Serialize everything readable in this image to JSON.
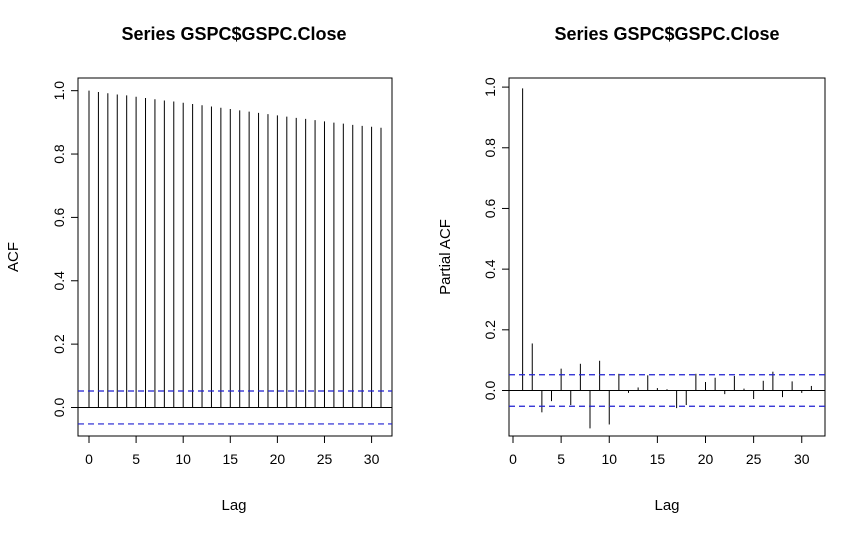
{
  "chart_data": [
    {
      "type": "bar",
      "title": "Series  GSPC$GSPC.Close",
      "xlabel": "Lag",
      "ylabel": "ACF",
      "xlim": [
        0,
        31
      ],
      "ylim": [
        -0.09,
        1.04
      ],
      "xticks": [
        "0",
        "5",
        "10",
        "15",
        "20",
        "25",
        "30"
      ],
      "yticks": [
        "0.0",
        "0.2",
        "0.4",
        "0.6",
        "0.8",
        "1.0"
      ],
      "ci": 0.052,
      "ci_color": "#1f1fd1",
      "lag_start": 0,
      "values": [
        1.0,
        0.996,
        0.992,
        0.988,
        0.985,
        0.981,
        0.977,
        0.973,
        0.969,
        0.966,
        0.962,
        0.958,
        0.954,
        0.95,
        0.946,
        0.942,
        0.938,
        0.934,
        0.93,
        0.926,
        0.922,
        0.918,
        0.914,
        0.911,
        0.907,
        0.903,
        0.899,
        0.896,
        0.892,
        0.889,
        0.886,
        0.883
      ]
    },
    {
      "type": "bar",
      "title": "Series  GSPC$GSPC.Close",
      "xlabel": "Lag",
      "ylabel": "Partial ACF",
      "xlim": [
        0,
        32
      ],
      "ylim": [
        -0.15,
        1.03
      ],
      "xticks": [
        "0",
        "5",
        "10",
        "15",
        "20",
        "25",
        "30"
      ],
      "yticks": [
        "0.0",
        "0.2",
        "0.4",
        "0.6",
        "0.8",
        "1.0"
      ],
      "ci": 0.052,
      "ci_color": "#1f1fd1",
      "lag_start": 1,
      "values": [
        0.996,
        0.155,
        -0.072,
        -0.035,
        0.072,
        -0.048,
        0.088,
        -0.125,
        0.098,
        -0.112,
        0.055,
        -0.008,
        0.01,
        0.05,
        0.008,
        0.004,
        -0.058,
        -0.048,
        0.055,
        0.028,
        0.042,
        -0.012,
        0.048,
        0.006,
        -0.028,
        0.032,
        0.062,
        -0.022,
        0.03,
        -0.008,
        0.015
      ]
    }
  ]
}
